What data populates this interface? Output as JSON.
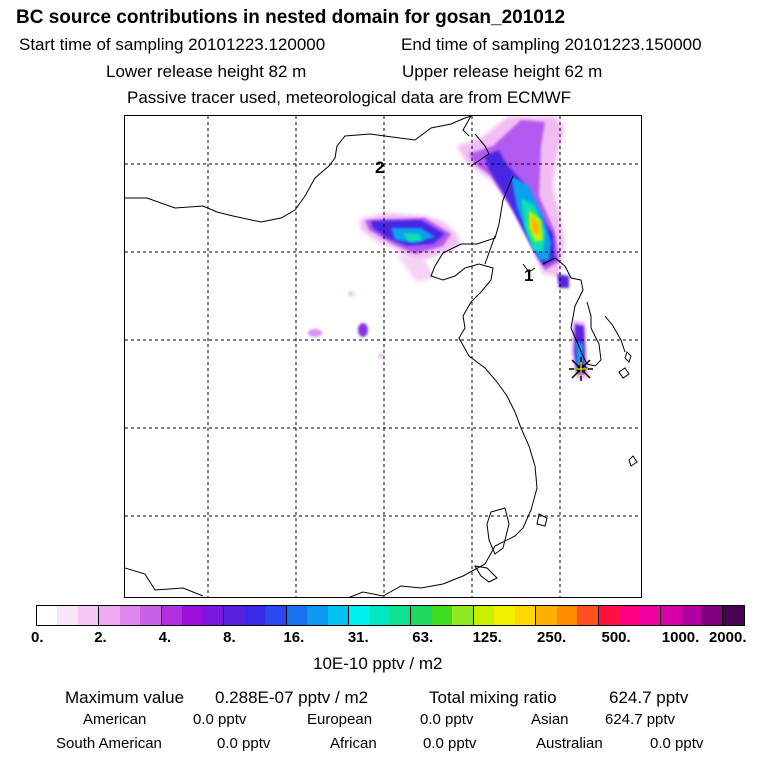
{
  "header": {
    "title": "BC  source contributions in nested domain for gosan_201012",
    "start_label": "Start time of sampling 20101223.120000",
    "end_label": "End time of sampling 20101223.150000",
    "lower_label": "Lower release height   82 m",
    "upper_label": "Upper release height   62 m",
    "note": "Passive tracer used, meteorological data are from ECMWF"
  },
  "map": {
    "point_labels": [
      "2",
      "1"
    ],
    "receptor_marker": "star-marker"
  },
  "colorbar": {
    "colors": [
      "#ffffff",
      "#fae6fa",
      "#f5c8f5",
      "#eeaaf0",
      "#e088ee",
      "#c860e8",
      "#b030e0",
      "#9a10da",
      "#7a18e0",
      "#5a20e0",
      "#3a28e8",
      "#2848f0",
      "#1870f0",
      "#0c98f0",
      "#00c4f0",
      "#00f0f0",
      "#00e8c0",
      "#10e090",
      "#20d860",
      "#40dc20",
      "#90e820",
      "#c8f000",
      "#f0f000",
      "#ffd800",
      "#ffb000",
      "#ff8c00",
      "#ff5020",
      "#ff1040",
      "#ff0080",
      "#f000a0",
      "#d800a8",
      "#b000a0",
      "#800080",
      "#4a0050"
    ],
    "ticks": [
      "0.",
      "2.",
      "4.",
      "8.",
      "16.",
      "31.",
      "63.",
      "125.",
      "250.",
      "500.",
      "1000.",
      "2000."
    ],
    "unit": "10E-10 pptv / m2"
  },
  "stats": {
    "max_label": "Maximum value",
    "max_value": "0.288E-07 pptv / m2",
    "total_label": "Total mixing ratio",
    "total_value": "624.7 pptv"
  },
  "regions": [
    {
      "name": "American",
      "value": "0.0 pptv"
    },
    {
      "name": "European",
      "value": "0.0 pptv"
    },
    {
      "name": "Asian",
      "value": "624.7 pptv"
    },
    {
      "name": "South American",
      "value": "0.0 pptv"
    },
    {
      "name": "African",
      "value": "0.0 pptv"
    },
    {
      "name": "Australian",
      "value": "0.0 pptv"
    }
  ]
}
